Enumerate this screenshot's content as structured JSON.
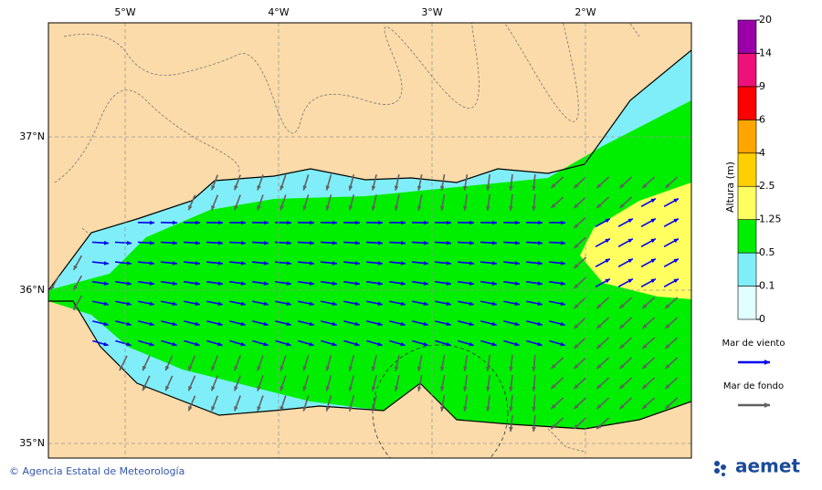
{
  "map": {
    "lon_ticks": [
      "5°W",
      "4°W",
      "3°W",
      "2°W"
    ],
    "lat_ticks": [
      "37°N",
      "36°N",
      "35°N"
    ],
    "colorbar": {
      "title": "Altura (m)",
      "levels": [
        0,
        0.1,
        0.5,
        1.25,
        2.5,
        4,
        6,
        9,
        14,
        20
      ],
      "colors": [
        "#e0ffff",
        "#80eef8",
        "#00ee00",
        "#ffff60",
        "#ffd000",
        "#ffa500",
        "#ff0000",
        "#ee1177",
        "#9900aa"
      ]
    },
    "legend": [
      {
        "label": "Mar de viento",
        "color": "#0000ee"
      },
      {
        "label": "Mar de fondo",
        "color": "#606060"
      }
    ],
    "footer": "© Agencia Estatal de Meteorología",
    "logo": "aemet"
  }
}
